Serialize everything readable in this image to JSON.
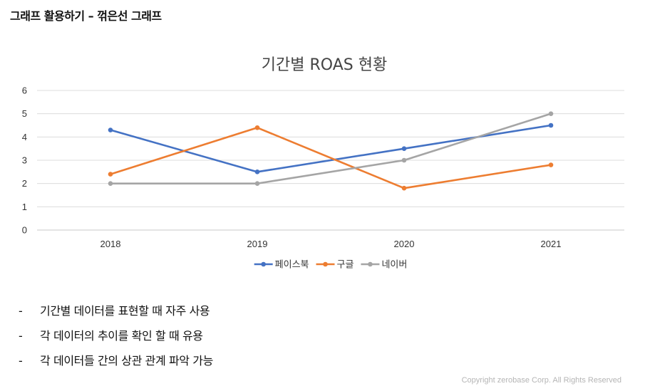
{
  "header": {
    "title": "그래프 활용하기 – 꺾은선 그래프"
  },
  "chart_data": {
    "type": "line",
    "title": "기간별 ROAS 현황",
    "categories": [
      "2018",
      "2019",
      "2020",
      "2021"
    ],
    "series": [
      {
        "name": "페이스북",
        "values": [
          4.3,
          2.5,
          3.5,
          4.5
        ],
        "color": "#4472C4"
      },
      {
        "name": "구글",
        "values": [
          2.4,
          4.4,
          1.8,
          2.8
        ],
        "color": "#ED7D31"
      },
      {
        "name": "네이버",
        "values": [
          2.0,
          2.0,
          3.0,
          5.0
        ],
        "color": "#A5A5A5"
      }
    ],
    "ylim": [
      0,
      6
    ],
    "yticks": [
      "0",
      "1",
      "2",
      "3",
      "4",
      "5",
      "6"
    ],
    "grid": true,
    "legend": "bottom"
  },
  "bullets": [
    "기간별 데이터를 표현할 때 자주 사용",
    "각 데이터의 추이를 확인 할 때 유용",
    "각 데이터들 간의 상관 관계 파악 가능"
  ],
  "bullet_marker": "-",
  "footer": {
    "copyright": "Copyright zerobase Corp. All Rights Reserved"
  }
}
